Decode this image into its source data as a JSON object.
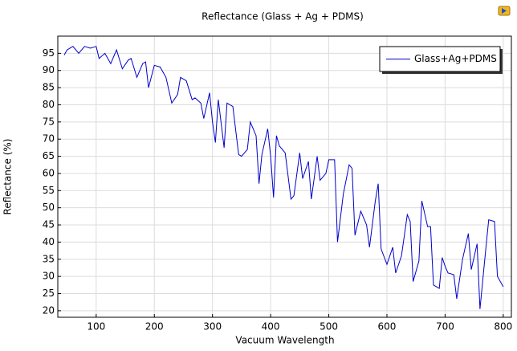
{
  "chart_data": {
    "type": "line",
    "title": "Reflectance (Glass + Ag + PDMS)",
    "x_label": "Vacuum Wavelength",
    "y_label": "Reflectance (%)",
    "x": [
      45,
      50,
      60,
      70,
      80,
      90,
      100,
      105,
      115,
      125,
      135,
      145,
      155,
      160,
      170,
      180,
      185,
      190,
      200,
      210,
      220,
      230,
      240,
      245,
      255,
      265,
      270,
      280,
      285,
      295,
      300,
      305,
      310,
      320,
      325,
      335,
      345,
      350,
      360,
      365,
      375,
      380,
      385,
      395,
      400,
      405,
      410,
      415,
      425,
      435,
      440,
      450,
      455,
      465,
      470,
      480,
      485,
      495,
      500,
      510,
      515,
      525,
      535,
      540,
      545,
      555,
      565,
      570,
      580,
      585,
      590,
      600,
      610,
      615,
      625,
      635,
      640,
      645,
      655,
      660,
      670,
      675,
      680,
      690,
      695,
      700,
      705,
      715,
      720,
      730,
      740,
      745,
      755,
      760,
      770,
      775,
      785,
      790,
      800
    ],
    "series": [
      {
        "name": "Glass+Ag+PDMS",
        "color": "#0000cc",
        "values": [
          94.5,
          96,
          97,
          95,
          97,
          96.5,
          97,
          93.5,
          95,
          92,
          96,
          90.5,
          93,
          93.5,
          88,
          92,
          92.5,
          85,
          91.5,
          91,
          88,
          80.5,
          83,
          88,
          87,
          81.5,
          82,
          80.5,
          76,
          83.5,
          75,
          69,
          81.5,
          67.5,
          80.5,
          79.5,
          65.5,
          65,
          67,
          75,
          71,
          57,
          65.5,
          73,
          65,
          53,
          71,
          68,
          66,
          52.5,
          53.5,
          66,
          58.5,
          63.5,
          52.5,
          65,
          58,
          60,
          64,
          64,
          40,
          54,
          62.5,
          61.5,
          42,
          49,
          45,
          38.5,
          52,
          57,
          38,
          33.5,
          38.5,
          31,
          36,
          48,
          46,
          28.5,
          34.5,
          52,
          44.5,
          44.5,
          27.5,
          26.5,
          35.5,
          33,
          31,
          30.5,
          23.5,
          35,
          42.5,
          32,
          39.5,
          20.5,
          38,
          46.5,
          46,
          30,
          27
        ]
      }
    ],
    "xlim": [
      34,
      814
    ],
    "ylim": [
      18.1,
      100
    ],
    "xticks": [
      100,
      200,
      300,
      400,
      500,
      600,
      700,
      800
    ],
    "yticks": [
      20,
      25,
      30,
      35,
      40,
      45,
      50,
      55,
      60,
      65,
      70,
      75,
      80,
      85,
      90,
      95
    ],
    "grid": true,
    "legend": "upper right"
  }
}
